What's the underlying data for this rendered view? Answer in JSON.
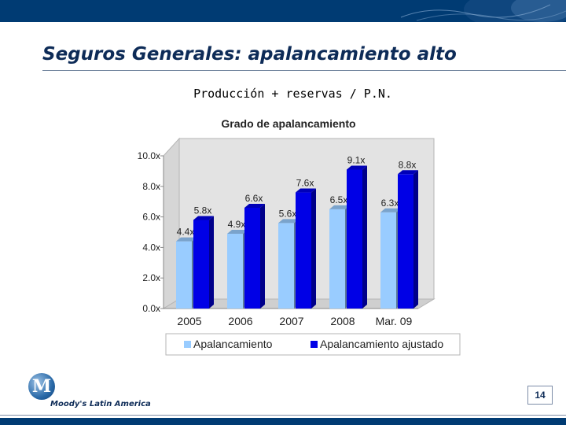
{
  "slide": {
    "title": "Seguros Generales: apalancamiento alto",
    "subtitle": "Producción + reservas / P.N.",
    "page_number": "14",
    "logo_text": "Moody's Latin America",
    "logo_letter": "M"
  },
  "colors": {
    "header_bar": "#003b73",
    "series_light": "#99ccff",
    "series_dark": "#0000e6",
    "title_text": "#0d2b57"
  },
  "chart_data": {
    "type": "bar",
    "title": "Grado de apalancamiento",
    "categories": [
      "2005",
      "2006",
      "2007",
      "2008",
      "Mar. 09"
    ],
    "series": [
      {
        "name": "Apalancamiento",
        "values": [
          4.4,
          4.9,
          5.6,
          6.5,
          6.3
        ],
        "labels": [
          "4.4x",
          "4.9x",
          "5.6x",
          "6.5x",
          "6.3x"
        ],
        "color": "#99ccff"
      },
      {
        "name": "Apalancamiento ajustado",
        "values": [
          5.8,
          6.6,
          7.6,
          9.1,
          8.8
        ],
        "labels": [
          "5.8x",
          "6.6x",
          "7.6x",
          "9.1x",
          "8.8x"
        ],
        "color": "#0000e6"
      }
    ],
    "y_ticks": [
      "0.0x",
      "2.0x",
      "4.0x",
      "6.0x",
      "8.0x",
      "10.0x"
    ],
    "ylim": [
      0,
      10
    ],
    "grid": false,
    "three_d": true,
    "legend_position": "bottom"
  }
}
